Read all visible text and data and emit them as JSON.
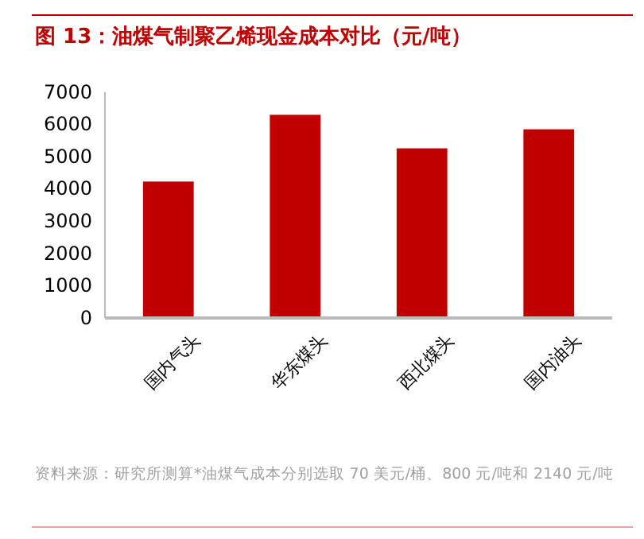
{
  "chart_data": {
    "type": "bar",
    "title": "图 13：油煤气制聚乙烯现金成本对比（元/吨）",
    "categories": [
      "国内气头",
      "华东煤头",
      "西北煤头",
      "国内油头"
    ],
    "values": [
      4230,
      6300,
      5260,
      5850
    ],
    "color": "#c00000",
    "ylim": [
      0,
      7000
    ],
    "yticks": [
      0,
      1000,
      2000,
      3000,
      4000,
      5000,
      6000,
      7000
    ],
    "grid": false,
    "annotations": [
      "资料来源：研究所测算*油煤气成本分别选取 70 美元/桶、800 元/吨和 2140 元/吨"
    ]
  }
}
